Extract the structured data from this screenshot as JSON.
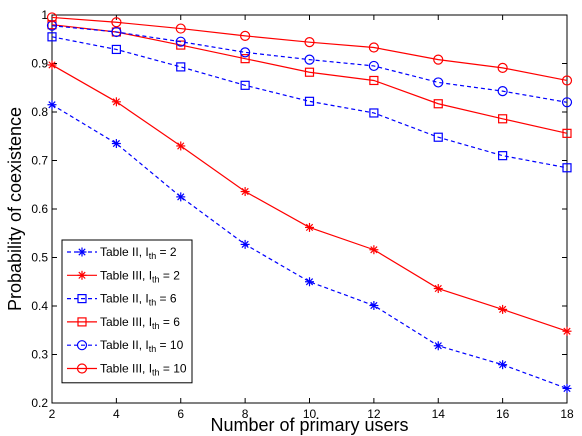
{
  "chart_data": {
    "type": "line",
    "title": "",
    "xlabel": "Number of primary users",
    "ylabel": "Probability of coexistence",
    "xlim": [
      2,
      18
    ],
    "ylim": [
      0.2,
      1
    ],
    "x_ticks": [
      2,
      4,
      6,
      8,
      10,
      12,
      14,
      16,
      18
    ],
    "y_ticks": [
      0.2,
      0.3,
      0.4,
      0.5,
      0.6,
      0.7,
      0.8,
      0.9,
      1
    ],
    "y_tick_labels": [
      "0.2",
      "0.3",
      "0.4",
      "0.5",
      "0.6",
      "0.7",
      "0.8",
      "0.9",
      "1"
    ],
    "grid": false,
    "legend_position": "bottom-left",
    "x": [
      2,
      4,
      6,
      8,
      10,
      12,
      14,
      16,
      18
    ],
    "series": [
      {
        "name": "Table II, I",
        "sub": "th",
        "suffix": " = 2",
        "color": "#0000ff",
        "dash": "dashed",
        "marker": "asterisk",
        "values": [
          0.815,
          0.735,
          0.625,
          0.527,
          0.45,
          0.401,
          0.318,
          0.279,
          0.23
        ]
      },
      {
        "name": "Table III, I",
        "sub": "th",
        "suffix": " = 2",
        "color": "#ff0000",
        "dash": "solid",
        "marker": "asterisk",
        "values": [
          0.897,
          0.821,
          0.73,
          0.636,
          0.562,
          0.516,
          0.436,
          0.393,
          0.348
        ]
      },
      {
        "name": "Table II, I",
        "sub": "th",
        "suffix": " = 6",
        "color": "#0000ff",
        "dash": "dashed",
        "marker": "square",
        "values": [
          0.955,
          0.929,
          0.893,
          0.855,
          0.822,
          0.798,
          0.748,
          0.71,
          0.685
        ]
      },
      {
        "name": "Table III, I",
        "sub": "th",
        "suffix": " = 6",
        "color": "#ff0000",
        "dash": "solid",
        "marker": "square",
        "values": [
          0.98,
          0.965,
          0.938,
          0.91,
          0.882,
          0.865,
          0.817,
          0.786,
          0.756
        ]
      },
      {
        "name": "Table II, I",
        "sub": "th",
        "suffix": " = 10",
        "color": "#0000ff",
        "dash": "dashed",
        "marker": "circle",
        "values": [
          0.978,
          0.965,
          0.945,
          0.923,
          0.908,
          0.895,
          0.861,
          0.843,
          0.82
        ]
      },
      {
        "name": "Table III, I",
        "sub": "th",
        "suffix": " = 10",
        "color": "#ff0000",
        "dash": "solid",
        "marker": "circle",
        "values": [
          0.995,
          0.985,
          0.972,
          0.957,
          0.944,
          0.933,
          0.908,
          0.891,
          0.865
        ]
      }
    ]
  }
}
